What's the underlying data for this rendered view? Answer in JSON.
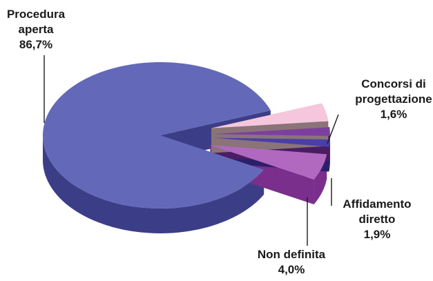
{
  "chart_data": {
    "type": "pie",
    "style": "3d-exploded",
    "title": "",
    "legend": "none",
    "slices": [
      {
        "name_lines": [
          "Procedura",
          "aperta"
        ],
        "value": 86.7,
        "value_label": "86,7%",
        "color": "#6468b8",
        "side_color": "#3b3e86"
      },
      {
        "name_lines": [
          "Non definita"
        ],
        "value": 4.0,
        "value_label": "4,0%",
        "color": "#f6c7dc",
        "side_color": "#8a7478"
      },
      {
        "name_lines": [
          "Affidamento",
          "diretto"
        ],
        "value": 1.9,
        "value_label": "1,9%",
        "color": "#7c3fa0",
        "side_color": "#4a1d63"
      },
      {
        "name_lines": [
          "Concorsi di",
          "progettazione"
        ],
        "value": 1.6,
        "value_label": "1,6%",
        "color": "#4a3fa8",
        "side_color": "#2a2068"
      },
      {
        "name_lines": [],
        "value": 5.8,
        "value_label": "",
        "color": "#b069bf",
        "side_color": "#7a2f8c"
      }
    ]
  }
}
